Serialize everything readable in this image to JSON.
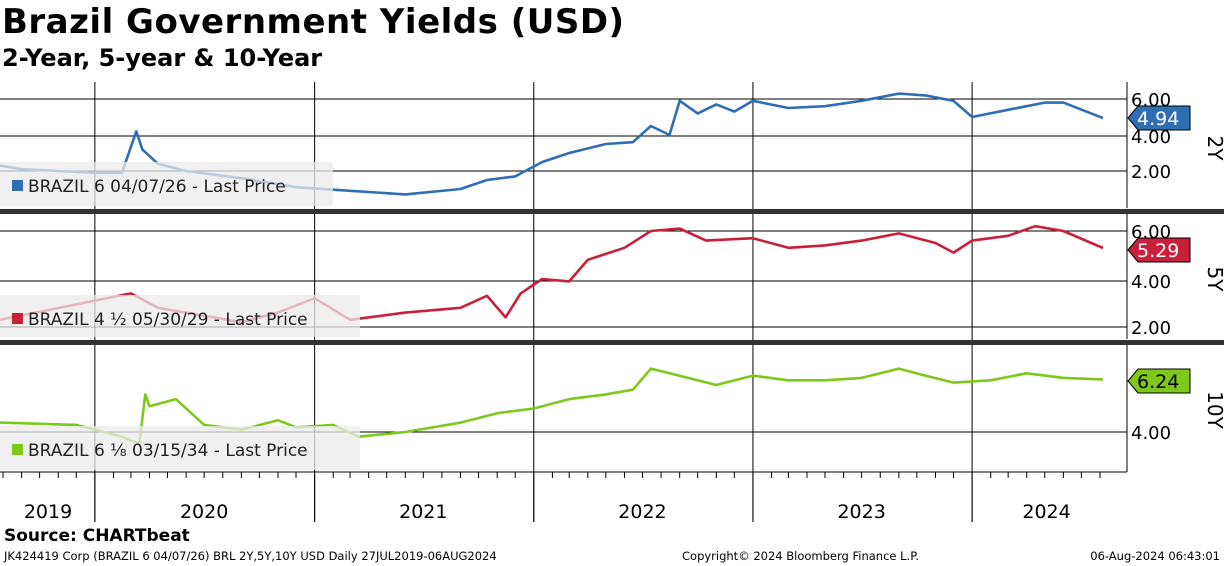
{
  "header": {
    "title": "Brazil Government Yields (USD)",
    "subtitle": "2-Year, 5-year & 10-Year"
  },
  "footer": {
    "source": "Source: CHARTbeat",
    "left": "JK424419 Corp (BRAZIL 6 04/07/26) BRL 2Y,5Y,10Y USD  Daily 27JUL2019-06AUG2024",
    "center": "Copyright© 2024 Bloomberg Finance L.P.",
    "right": "06-Aug-2024 06:43:01"
  },
  "chart_data": [
    {
      "type": "line",
      "panel_label": "2Y",
      "series": [
        {
          "name": "BRAZIL 6 04/07/26 - Last Price",
          "color": "#2f6eb5",
          "last_value": "4.94",
          "x": [
            "2019-07-27",
            "2019-09-01",
            "2019-11-01",
            "2020-01-01",
            "2020-02-15",
            "2020-03-10",
            "2020-03-20",
            "2020-04-15",
            "2020-06-01",
            "2020-09-01",
            "2020-12-01",
            "2021-03-01",
            "2021-06-01",
            "2021-09-01",
            "2021-10-15",
            "2021-12-01",
            "2022-01-15",
            "2022-03-01",
            "2022-05-01",
            "2022-06-15",
            "2022-07-15",
            "2022-08-15",
            "2022-09-01",
            "2022-10-01",
            "2022-11-01",
            "2022-12-01",
            "2023-01-01",
            "2023-03-01",
            "2023-05-01",
            "2023-07-01",
            "2023-09-01",
            "2023-10-15",
            "2023-12-01",
            "2024-01-01",
            "2024-03-01",
            "2024-05-01",
            "2024-06-01",
            "2024-08-06"
          ],
          "y": [
            2.3,
            2.1,
            2.0,
            1.9,
            1.9,
            4.2,
            3.2,
            2.4,
            2.0,
            1.6,
            1.1,
            0.9,
            0.7,
            1.0,
            1.5,
            1.7,
            2.5,
            3.0,
            3.5,
            3.6,
            4.5,
            4.0,
            5.9,
            5.2,
            5.7,
            5.3,
            5.9,
            5.5,
            5.6,
            5.9,
            6.3,
            6.2,
            5.9,
            5.0,
            5.4,
            5.8,
            5.8,
            4.94
          ]
        }
      ],
      "ylim": [
        0.4,
        6.6
      ],
      "y_ticks": [
        "6.00",
        "4.00",
        "2.00"
      ]
    },
    {
      "type": "line",
      "panel_label": "5Y",
      "series": [
        {
          "name": "BRAZIL 4 ½ 05/30/29 - Last Price",
          "color": "#c8203b",
          "last_value": "5.29",
          "x": [
            "2019-07-27",
            "2020-03-01",
            "2020-04-15",
            "2020-06-01",
            "2020-09-01",
            "2020-11-01",
            "2021-01-01",
            "2021-03-01",
            "2021-06-01",
            "2021-09-01",
            "2021-10-15",
            "2021-11-15",
            "2021-12-10",
            "2022-01-15",
            "2022-03-01",
            "2022-04-01",
            "2022-06-01",
            "2022-07-15",
            "2022-09-01",
            "2022-10-15",
            "2023-01-01",
            "2023-03-01",
            "2023-05-01",
            "2023-07-01",
            "2023-09-01",
            "2023-11-01",
            "2023-12-01",
            "2024-01-01",
            "2024-03-01",
            "2024-04-15",
            "2024-06-01",
            "2024-08-06"
          ],
          "y": [
            2.3,
            3.4,
            2.8,
            2.6,
            2.2,
            2.6,
            3.2,
            2.3,
            2.6,
            2.8,
            3.3,
            2.4,
            3.4,
            4.0,
            3.9,
            4.8,
            5.3,
            6.0,
            6.1,
            5.6,
            5.7,
            5.3,
            5.4,
            5.6,
            5.9,
            5.5,
            5.1,
            5.6,
            5.8,
            6.2,
            6.0,
            5.29
          ]
        }
      ],
      "ylim": [
        1.6,
        6.6
      ],
      "y_ticks": [
        "6.00",
        "4.00",
        "2.00"
      ]
    },
    {
      "type": "line",
      "panel_label": "10Y",
      "series": [
        {
          "name": "BRAZIL 6 ⅛ 03/15/34 - Last Price",
          "color": "#7ec81b",
          "last_value": "6.24",
          "x": [
            "2019-07-27",
            "2019-12-01",
            "2020-02-15",
            "2020-03-15",
            "2020-03-25",
            "2020-04-01",
            "2020-05-15",
            "2020-07-01",
            "2020-09-01",
            "2020-11-01",
            "2020-12-01",
            "2021-02-01",
            "2021-03-15",
            "2021-06-01",
            "2021-09-01",
            "2021-11-01",
            "2022-01-01",
            "2022-03-01",
            "2022-05-01",
            "2022-06-15",
            "2022-07-15",
            "2022-09-15",
            "2022-11-01",
            "2023-01-01",
            "2023-03-01",
            "2023-05-01",
            "2023-07-01",
            "2023-09-01",
            "2023-10-15",
            "2023-12-01",
            "2024-02-01",
            "2024-04-01",
            "2024-05-01",
            "2024-06-01",
            "2024-08-06"
          ],
          "y": [
            4.4,
            4.3,
            3.8,
            3.5,
            5.6,
            5.1,
            5.4,
            4.3,
            4.1,
            4.5,
            4.2,
            4.3,
            3.8,
            4.0,
            4.4,
            4.8,
            5.0,
            5.4,
            5.6,
            5.8,
            6.7,
            6.3,
            6.0,
            6.4,
            6.2,
            6.2,
            6.3,
            6.7,
            6.4,
            6.1,
            6.2,
            6.5,
            6.4,
            6.3,
            6.24
          ]
        }
      ],
      "ylim": [
        3.4,
        7.1
      ],
      "y_ticks": [
        "4.00"
      ]
    }
  ],
  "x_axis": {
    "labels": [
      "2019",
      "2020",
      "2021",
      "2022",
      "2023",
      "2024"
    ],
    "label_dates": [
      "2019-10-15",
      "2020-07-01",
      "2021-07-01",
      "2022-07-01",
      "2023-07-01",
      "2024-05-04"
    ],
    "year_lines": [
      "2020-01-01",
      "2021-01-01",
      "2022-01-01",
      "2023-01-01",
      "2024-01-01"
    ],
    "mid_lines": [
      "2019-07-01",
      "2020-07-01",
      "2021-07-01",
      "2022-07-01",
      "2023-07-01",
      "2024-07-01"
    ],
    "start": "2019-07-27",
    "end": "2024-08-06"
  }
}
